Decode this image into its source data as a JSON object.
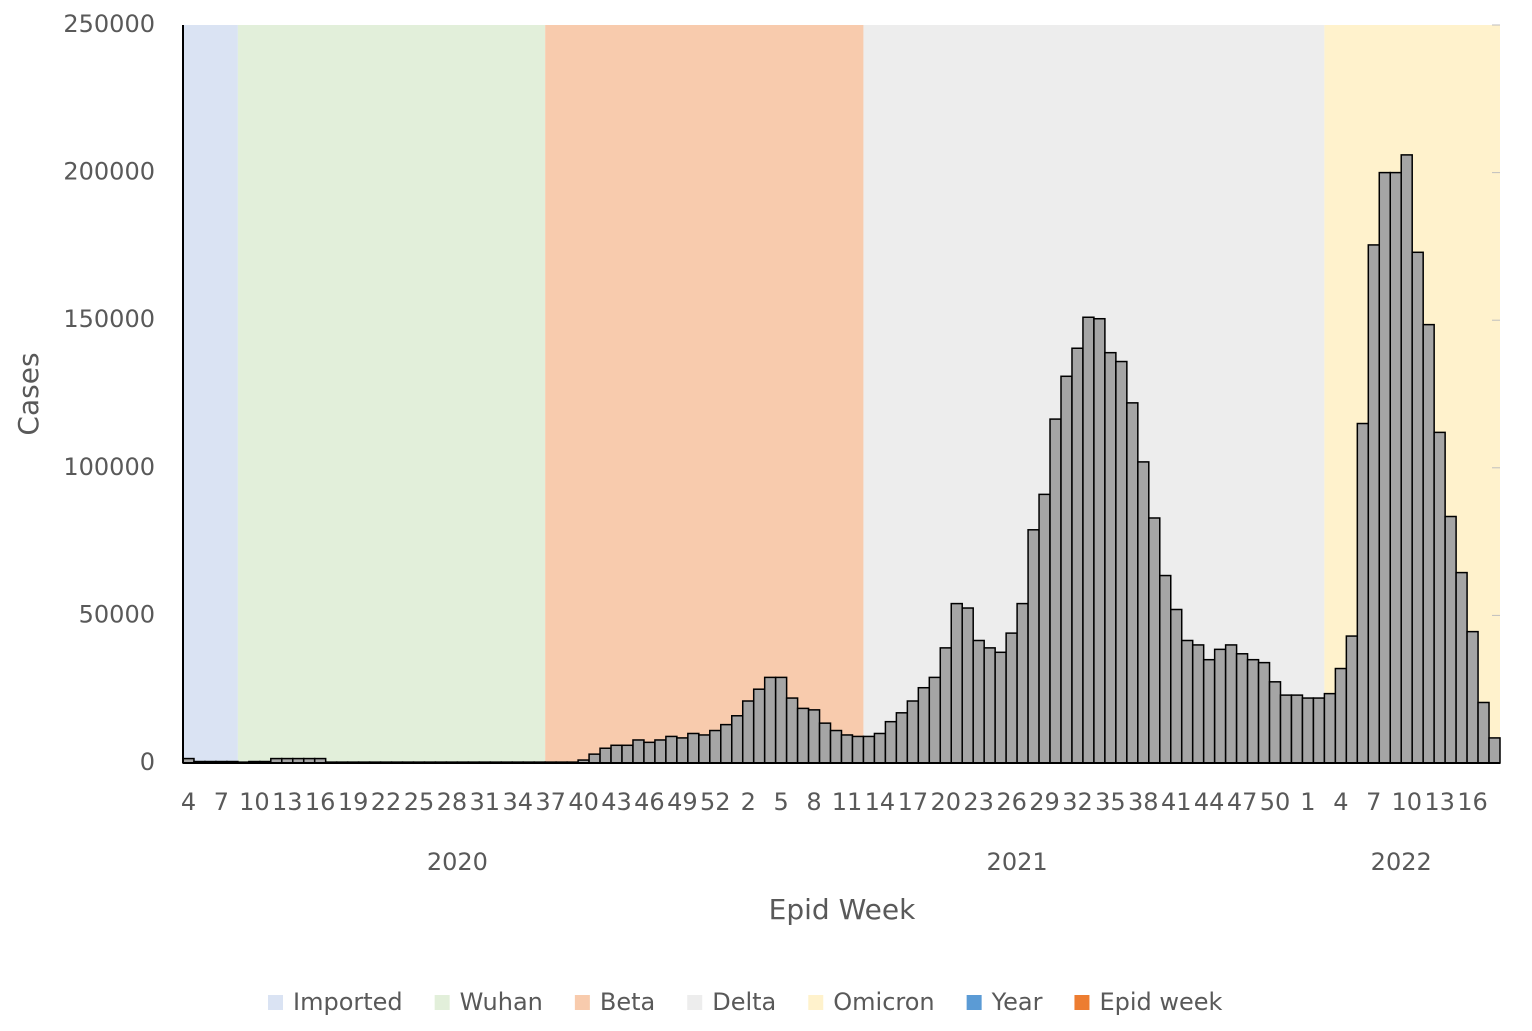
{
  "chart_data": {
    "type": "bar",
    "y_label": "Cases",
    "x_label": "Epid Week",
    "categories": [
      4,
      null,
      null,
      7,
      null,
      null,
      10,
      null,
      null,
      13,
      null,
      null,
      16,
      null,
      null,
      19,
      null,
      null,
      22,
      null,
      null,
      25,
      null,
      null,
      28,
      null,
      null,
      31,
      null,
      null,
      34,
      null,
      null,
      37,
      null,
      null,
      40,
      null,
      null,
      43,
      null,
      null,
      46,
      null,
      null,
      49,
      null,
      null,
      52,
      null,
      null,
      2,
      null,
      null,
      5,
      null,
      null,
      8,
      null,
      null,
      11,
      null,
      null,
      14,
      null,
      null,
      17,
      null,
      null,
      20,
      null,
      null,
      23,
      null,
      null,
      26,
      null,
      null,
      29,
      null,
      null,
      32,
      null,
      null,
      35,
      null,
      null,
      38,
      null,
      null,
      41,
      null,
      null,
      44,
      null,
      null,
      47,
      null,
      null,
      50,
      null,
      null,
      1,
      null,
      null,
      4,
      null,
      null,
      7,
      null,
      null,
      10,
      null,
      null,
      13,
      null,
      null,
      16,
      null,
      null
    ],
    "values": [
      1500,
      500,
      500,
      500,
      500,
      300,
      500,
      500,
      1500,
      1500,
      1500,
      1500,
      1500,
      300,
      300,
      300,
      300,
      300,
      300,
      300,
      300,
      300,
      300,
      300,
      300,
      300,
      300,
      300,
      300,
      300,
      300,
      300,
      300,
      300,
      300,
      300,
      1000,
      3000,
      5000,
      6000,
      6000,
      7800,
      7000,
      7800,
      9000,
      8500,
      10000,
      9500,
      11000,
      13000,
      16000,
      21000,
      25000,
      29000,
      29000,
      22000,
      18500,
      18000,
      13500,
      11000,
      9500,
      9000,
      9000,
      10000,
      14000,
      17000,
      21000,
      25500,
      29000,
      39000,
      54000,
      52500,
      41500,
      39000,
      37500,
      44000,
      54000,
      79000,
      91000,
      116500,
      131000,
      140500,
      151000,
      150500,
      139000,
      136000,
      122000,
      102000,
      83000,
      63500,
      52000,
      41500,
      40000,
      35000,
      38500,
      40000,
      37000,
      35000,
      34000,
      27500,
      23000,
      23000,
      22000,
      22000,
      23500,
      32000,
      43000,
      115000,
      175500,
      200000,
      200000,
      206000,
      173000,
      148500,
      112000,
      83500,
      64500,
      44500,
      20500,
      8500
    ],
    "color": "#a5a5a5",
    "ylim": [
      0,
      250000
    ],
    "yticks": [
      0,
      50000,
      100000,
      150000,
      200000,
      250000
    ],
    "year_groups": [
      {
        "label": "2020",
        "range": [
          0,
          49
        ]
      },
      {
        "label": "2021",
        "range": [
          50,
          101
        ]
      },
      {
        "label": "2022",
        "range": [
          102,
          119
        ]
      }
    ],
    "bands": [
      {
        "name": "Imported",
        "color": "#dae3f3",
        "range": [
          0,
          4
        ]
      },
      {
        "name": "Wuhan",
        "color": "#e2efda",
        "range": [
          5,
          32
        ]
      },
      {
        "name": "Beta",
        "color": "#f8cbad",
        "range": [
          33,
          61
        ]
      },
      {
        "name": "Delta",
        "color": "#ededed",
        "range": [
          62,
          103
        ]
      },
      {
        "name": "Omicron",
        "color": "#fff2cc",
        "range": [
          104,
          119
        ]
      }
    ],
    "legend_extra": [
      {
        "name": "Year",
        "color": "#5b9bd5"
      },
      {
        "name": "Epid week",
        "color": "#ed7d31"
      }
    ]
  }
}
